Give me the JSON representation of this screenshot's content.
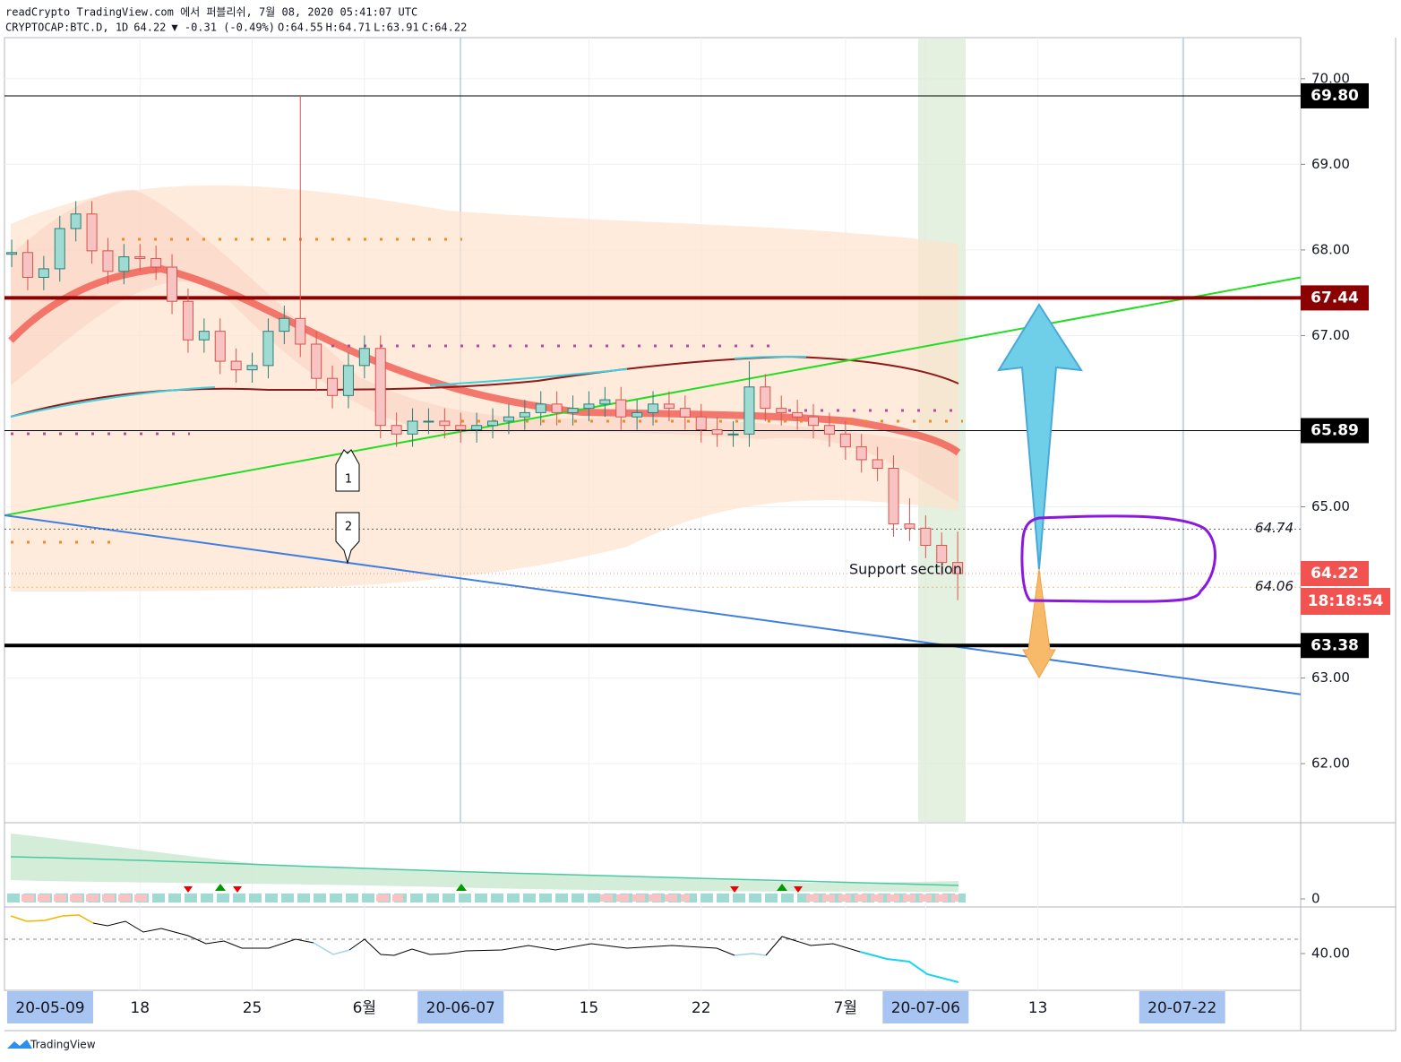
{
  "header": {
    "line1": "readCrypto TradingView.com 에서 퍼블리쉬, 7월 08, 2020 05:41:07 UTC",
    "symbol": "CRYPTOCAP:BTC.D, 1D",
    "last": "64.22",
    "change": "▼ -0.31 (-0.49%)",
    "ohlc": [
      {
        "label": "O:",
        "value": "64.55"
      },
      {
        "label": "H:",
        "value": "64.71"
      },
      {
        "label": "L:",
        "value": "63.91"
      },
      {
        "label": "C:",
        "value": "64.22"
      }
    ]
  },
  "footer": "TradingView",
  "chart_data": {
    "type": "candlestick",
    "up_color": "#9fdad3",
    "down_color": "#f7c3c3",
    "up_line": "#2b7f77",
    "down_line": "#d9534f",
    "open": [
      67.95,
      67.97,
      67.68,
      67.78,
      68.25,
      68.42,
      67.99,
      67.75,
      67.92,
      67.9,
      67.8,
      67.4,
      66.95,
      67.05,
      66.7,
      66.6,
      66.65,
      67.05,
      67.2,
      66.9,
      66.5,
      66.3,
      66.65,
      66.85,
      65.95,
      65.85,
      66.0,
      66.0,
      65.95,
      65.9,
      65.95,
      66.0,
      66.05,
      66.1,
      66.2,
      66.1,
      66.15,
      66.2,
      66.25,
      66.05,
      66.1,
      66.2,
      66.15,
      66.05,
      65.9,
      65.85,
      65.85,
      66.4,
      66.15,
      66.1,
      66.05,
      65.95,
      65.85,
      65.7,
      65.55,
      65.45,
      64.8,
      64.75,
      64.55,
      64.35
    ],
    "high": [
      68.12,
      68.12,
      67.93,
      68.4,
      68.57,
      68.57,
      68.14,
      68.07,
      68.07,
      68.05,
      67.95,
      67.55,
      67.2,
      67.2,
      66.85,
      66.8,
      67.2,
      67.35,
      69.8,
      67.05,
      66.65,
      66.8,
      67.0,
      67.0,
      66.1,
      66.15,
      66.15,
      66.15,
      66.1,
      66.1,
      66.15,
      66.2,
      66.25,
      66.35,
      66.35,
      66.3,
      66.35,
      66.4,
      66.4,
      66.25,
      66.35,
      66.35,
      66.3,
      66.2,
      66.05,
      66.0,
      66.7,
      66.55,
      66.3,
      66.25,
      66.2,
      66.1,
      66.0,
      65.85,
      65.7,
      65.6,
      65.1,
      64.9,
      64.7,
      64.71
    ],
    "low": [
      67.8,
      67.53,
      67.53,
      67.63,
      68.1,
      67.84,
      67.6,
      67.6,
      67.75,
      67.65,
      67.25,
      66.8,
      66.8,
      66.55,
      66.45,
      66.45,
      66.5,
      66.9,
      66.75,
      66.35,
      66.15,
      66.15,
      66.5,
      65.8,
      65.7,
      65.7,
      65.85,
      65.8,
      65.75,
      65.75,
      65.8,
      65.85,
      65.9,
      65.95,
      65.95,
      65.95,
      66.0,
      66.05,
      65.9,
      65.9,
      65.95,
      66.0,
      65.9,
      65.75,
      65.7,
      65.7,
      65.7,
      66.0,
      65.95,
      65.9,
      65.8,
      65.7,
      65.55,
      65.4,
      65.3,
      64.65,
      64.6,
      64.4,
      64.2,
      63.91
    ],
    "close": [
      67.97,
      67.68,
      67.78,
      68.25,
      68.42,
      67.99,
      67.75,
      67.92,
      67.9,
      67.8,
      67.4,
      66.95,
      67.05,
      66.7,
      66.6,
      66.65,
      67.05,
      67.2,
      66.9,
      66.5,
      66.3,
      66.65,
      66.85,
      65.95,
      65.85,
      66.0,
      66.0,
      65.95,
      65.9,
      65.95,
      66.0,
      66.05,
      66.1,
      66.2,
      66.1,
      66.15,
      66.2,
      66.25,
      66.05,
      66.1,
      66.2,
      66.15,
      66.05,
      65.9,
      65.85,
      65.85,
      66.4,
      66.15,
      66.1,
      66.05,
      65.95,
      65.85,
      65.7,
      65.55,
      65.45,
      64.8,
      64.75,
      64.55,
      64.35,
      64.22
    ],
    "xlim": [
      -0.45,
      80.39
    ],
    "xticks": [
      {
        "value": -1,
        "label": "20-05-09",
        "boxed": true
      },
      {
        "value": 8,
        "label": "18"
      },
      {
        "value": 15,
        "label": "25"
      },
      {
        "value": 22,
        "label": "6월"
      },
      {
        "value": 28,
        "label": "20-06-07",
        "boxed": true
      },
      {
        "value": 36,
        "label": "15"
      },
      {
        "value": 43,
        "label": "22"
      },
      {
        "value": 52,
        "label": "7월"
      },
      {
        "value": 57,
        "label": "20-07-06",
        "boxed": true
      },
      {
        "value": 64,
        "label": "13"
      },
      {
        "value": 73,
        "label": "20-07-22",
        "boxed": true
      }
    ],
    "ylim": [
      61.31,
      70.48
    ],
    "yticks": [
      {
        "value": 62,
        "label": "62.00"
      },
      {
        "value": 63,
        "label": "63.00"
      },
      {
        "value": 65,
        "label": "65.00"
      },
      {
        "value": 67,
        "label": "67.00"
      },
      {
        "value": 68,
        "label": "68.00"
      },
      {
        "value": 69,
        "label": "69.00"
      },
      {
        "value": 70,
        "label": "70.00"
      }
    ],
    "grid": true,
    "levels": [
      {
        "value": 69.8,
        "label": "69.80",
        "color": "#000000",
        "width": 1,
        "style": "box"
      },
      {
        "value": 67.44,
        "label": "67.44",
        "color": "#8b0000",
        "width": 4,
        "style": "box"
      },
      {
        "value": 65.89,
        "label": "65.89",
        "color": "#000000",
        "width": 1,
        "style": "box"
      },
      {
        "value": 64.74,
        "label": "64.74",
        "color": "#000000",
        "width": 1,
        "style": "text"
      },
      {
        "value": 64.22,
        "label": "64.22",
        "color": "#f05350",
        "width": 1,
        "style": "box"
      },
      {
        "value": 64.06,
        "label": "64.06",
        "color": "#e89a3c",
        "width": 1,
        "style": "text"
      },
      {
        "value": 63.38,
        "label": "63.38",
        "color": "#000000",
        "width": 4,
        "style": "box"
      }
    ],
    "countdown": "18:18:54",
    "trendlines": [
      {
        "color": "#22dd22",
        "points": [
          [
            -0.45,
            64.9
          ],
          [
            80.39,
            67.68
          ]
        ]
      },
      {
        "color": "#3f7fe0",
        "points": [
          [
            -0.45,
            64.9
          ],
          [
            80.39,
            62.81
          ]
        ]
      }
    ],
    "annotations": [
      "1",
      "2",
      "Support section"
    ],
    "volume_pane_tick": 0,
    "rsi_pane_tick": {
      "value": 40,
      "label": "40.00"
    }
  }
}
